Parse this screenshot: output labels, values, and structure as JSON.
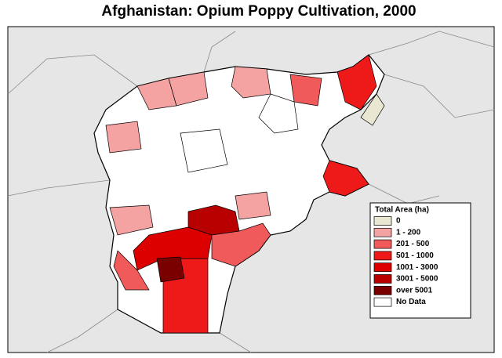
{
  "title": "Afghanistan: Opium Poppy Cultivation, 2000",
  "legend": {
    "title": "Total Area (ha)",
    "items": [
      {
        "label": "0",
        "color": "#e9e7d2"
      },
      {
        "label": "1 - 200",
        "color": "#f4a2a2"
      },
      {
        "label": "201 - 500",
        "color": "#f05a5a"
      },
      {
        "label": "501 - 1000",
        "color": "#ee1a1a"
      },
      {
        "label": "1001 - 3000",
        "color": "#dd0000"
      },
      {
        "label": "3001 - 5000",
        "color": "#b80000"
      },
      {
        "label": "over 5001",
        "color": "#7a0000"
      },
      {
        "label": "No Data",
        "color": "#ffffff"
      }
    ]
  }
}
